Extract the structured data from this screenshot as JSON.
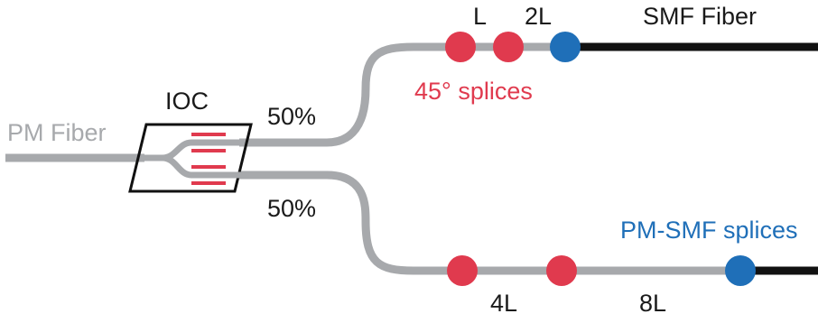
{
  "labels": {
    "pm_fiber": "PM Fiber",
    "ioc": "IOC",
    "split_upper": "50%",
    "split_lower": "50%",
    "upper_length_1": "L",
    "upper_length_2": "2L",
    "smf_fiber": "SMF Fiber",
    "splices_45": "45° splices",
    "lower_length_1": "4L",
    "lower_length_2": "8L",
    "pm_smf_splices": "PM-SMF splices"
  },
  "colors": {
    "pm_fiber": "#a7a9ac",
    "smf_fiber": "#111111",
    "splice_45": "#e03a4e",
    "splice_pm_smf": "#1f6fb8",
    "text": "#1a1a1a"
  },
  "splices": {
    "upper": [
      "45-degree",
      "45-degree",
      "pm-smf"
    ],
    "lower": [
      "45-degree",
      "45-degree",
      "pm-smf"
    ]
  }
}
